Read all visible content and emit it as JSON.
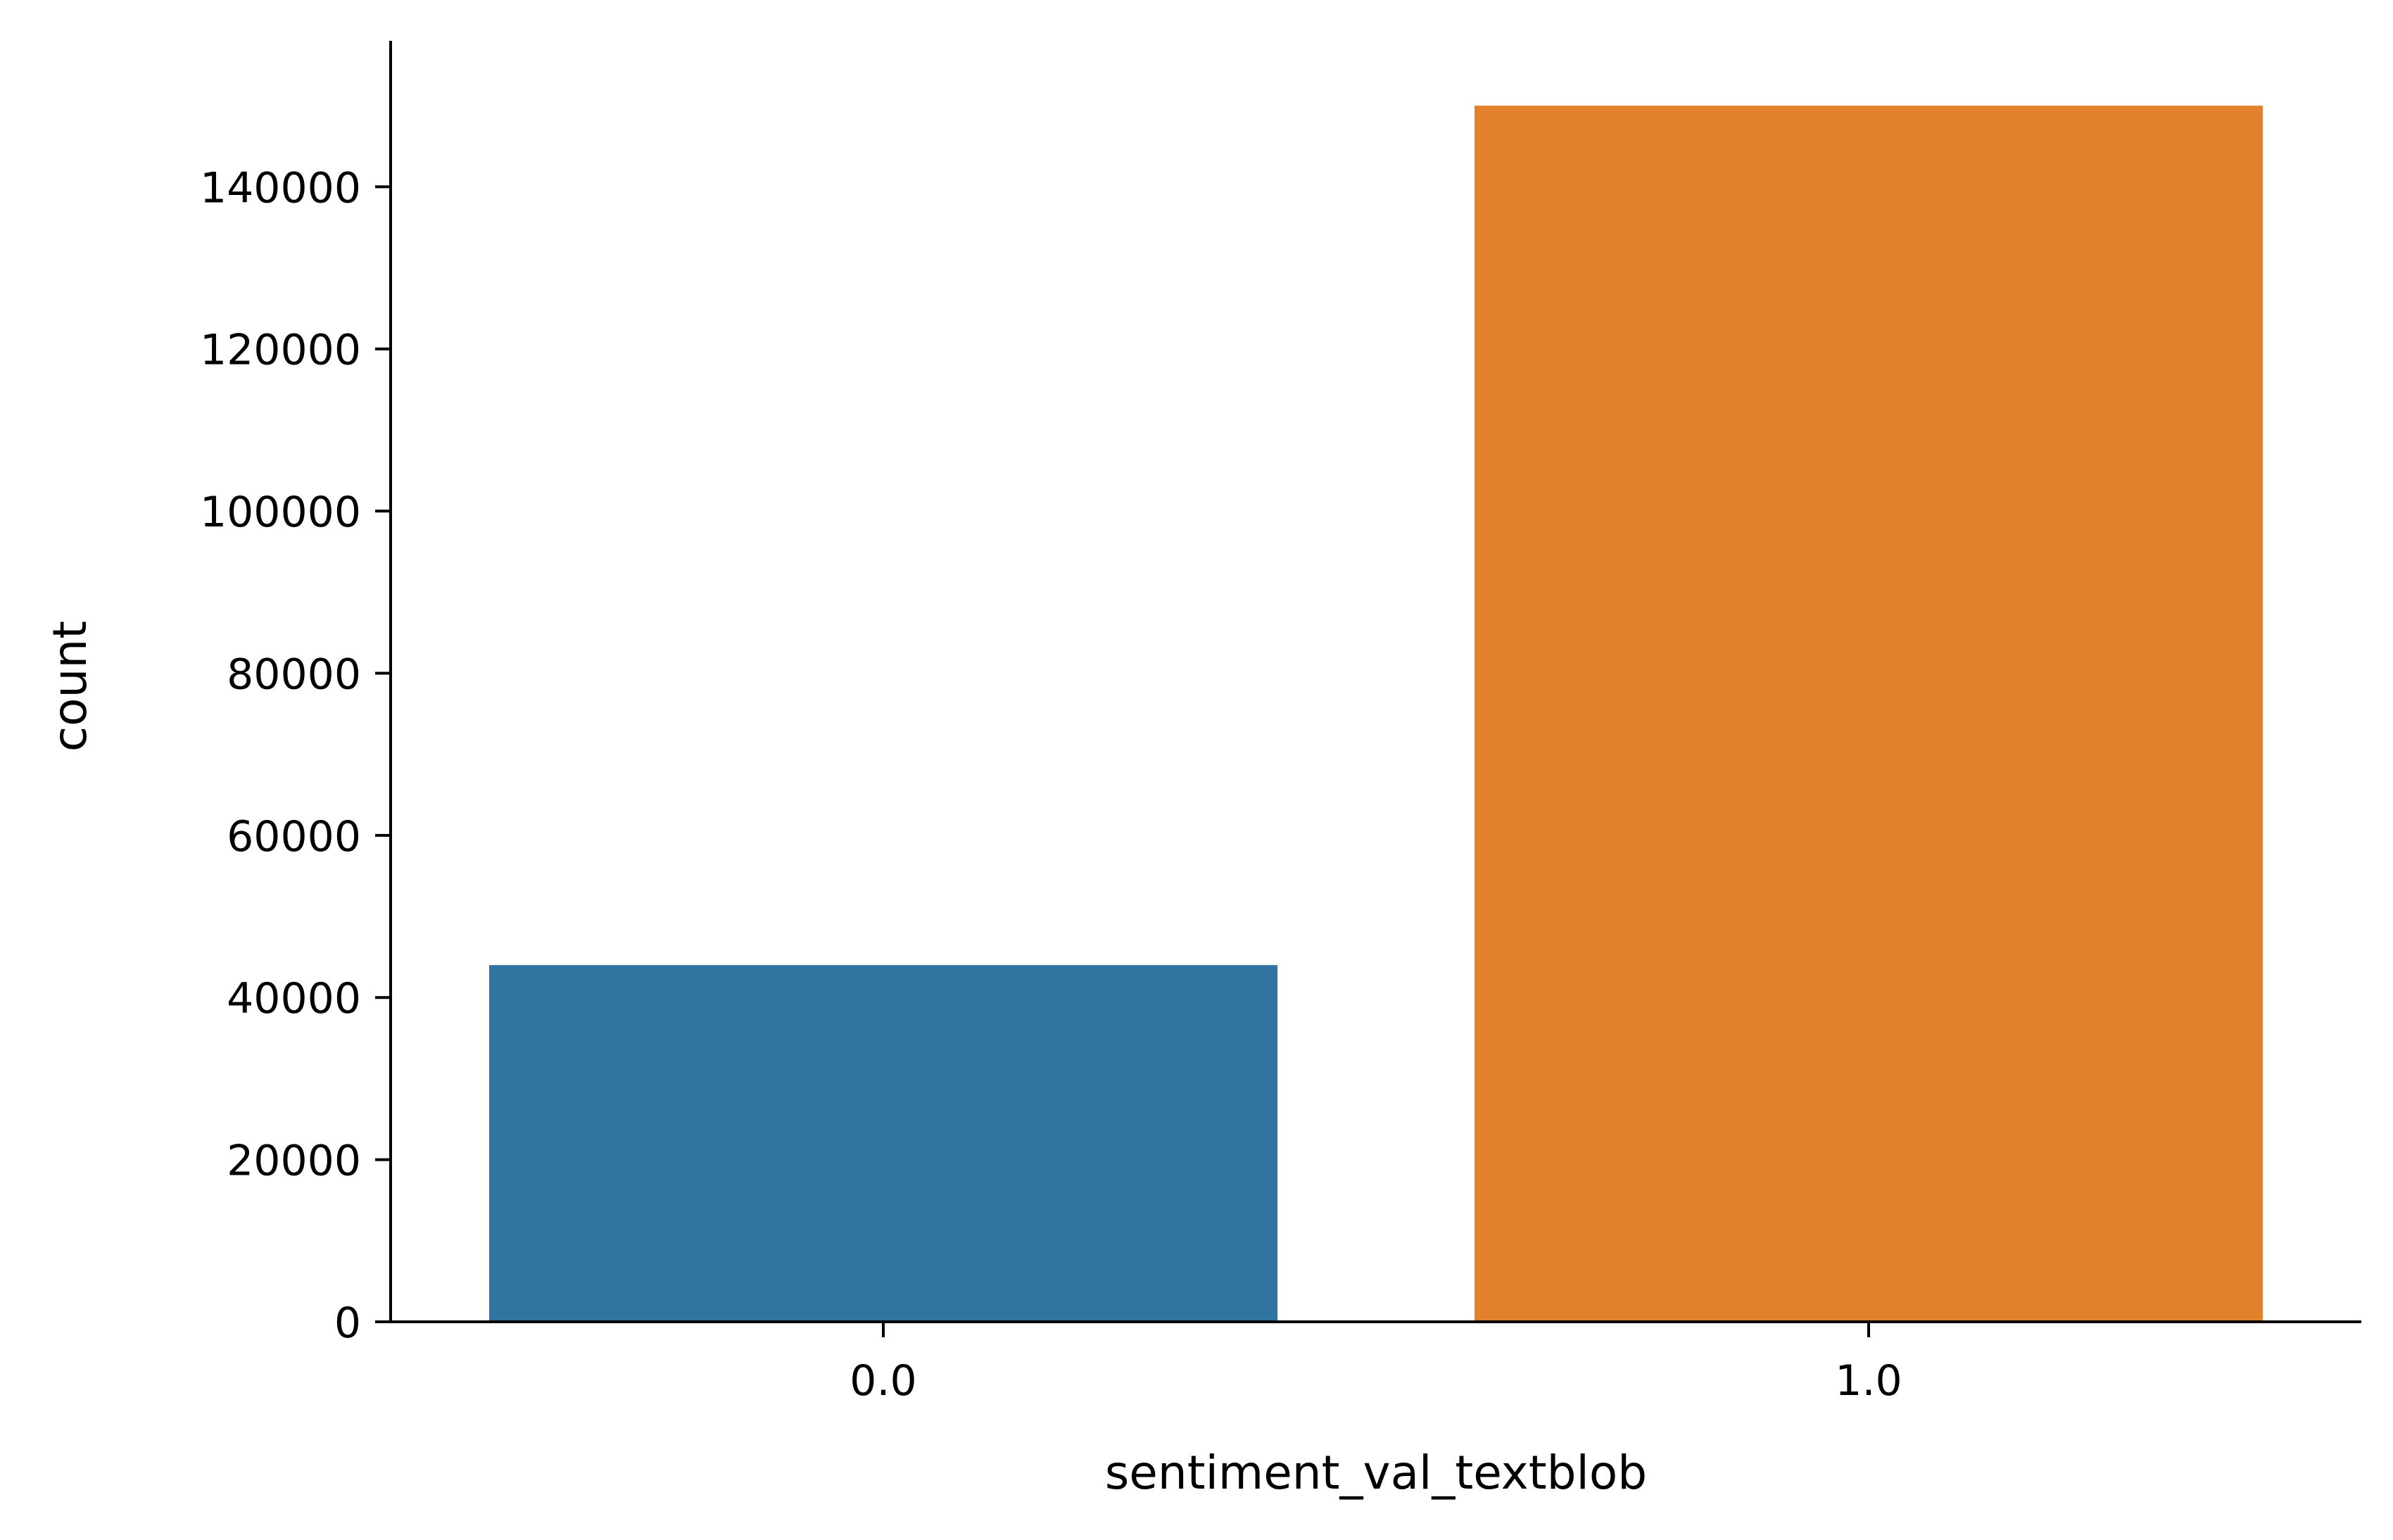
{
  "chart_data": {
    "type": "bar",
    "categories": [
      "0.0",
      "1.0"
    ],
    "values": [
      44000,
      150000
    ],
    "colors": [
      "#3274a1",
      "#e1812c"
    ],
    "title": "",
    "xlabel": "sentiment_val_textblob",
    "ylabel": "count",
    "ylim": [
      0,
      158000
    ],
    "yticks": [
      0,
      20000,
      40000,
      60000,
      80000,
      100000,
      120000,
      140000
    ],
    "ytick_labels": [
      "0",
      "20000",
      "40000",
      "60000",
      "80000",
      "100000",
      "120000",
      "140000"
    ],
    "grid": false,
    "legend": "none"
  }
}
